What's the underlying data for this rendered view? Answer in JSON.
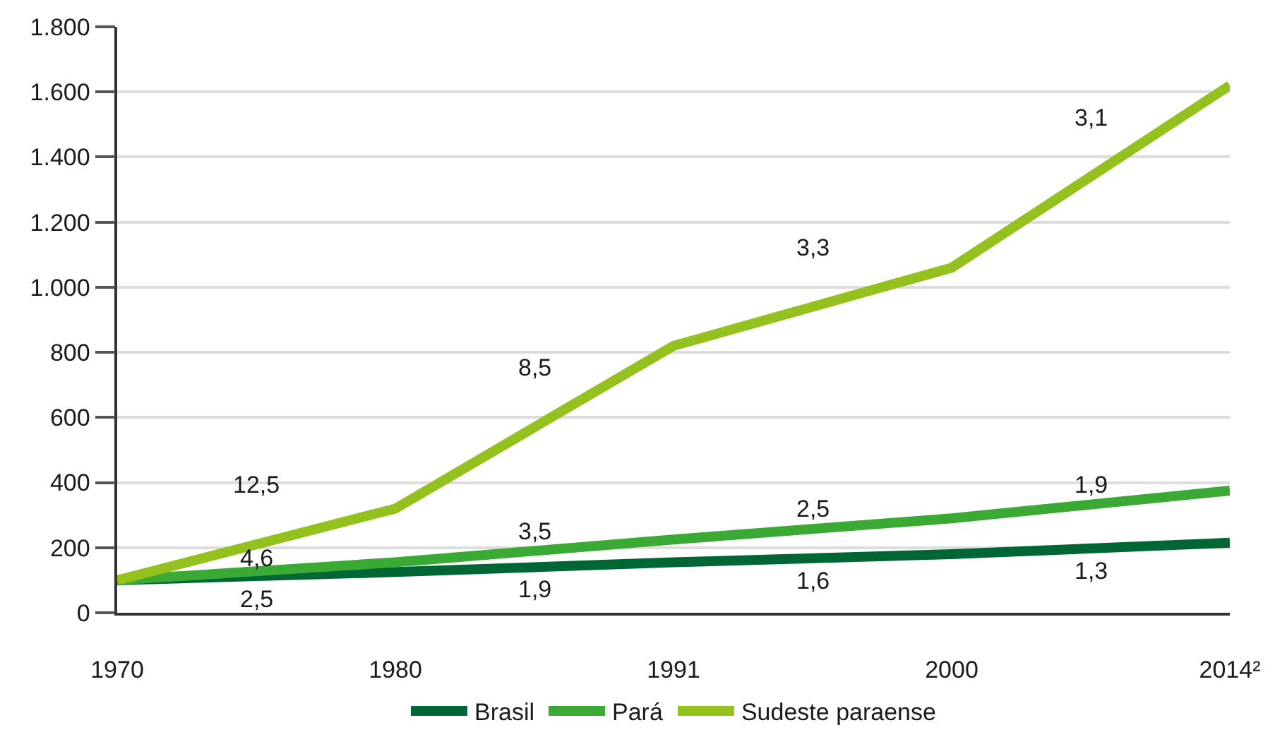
{
  "chart_data": {
    "type": "line",
    "categories": [
      "1970",
      "1980",
      "1991",
      "2000",
      "2014²"
    ],
    "series": [
      {
        "name": "Brasil",
        "color": "#006633",
        "values": [
          100,
          125,
          155,
          180,
          215
        ]
      },
      {
        "name": "Pará",
        "color": "#3aaa35",
        "values": [
          100,
          155,
          225,
          290,
          375
        ]
      },
      {
        "name": "Sudeste paraense",
        "color": "#95c11f",
        "values": [
          100,
          320,
          820,
          1060,
          1620
        ]
      }
    ],
    "ylim": [
      0,
      1800
    ],
    "yticks": [
      0,
      200,
      400,
      600,
      800,
      {
        "value": 1000,
        "label": "1.000"
      },
      {
        "value": 1200,
        "label": "1.200"
      },
      {
        "value": 1400,
        "label": "1.400"
      },
      {
        "value": 1600,
        "label": "1.600"
      },
      {
        "value": 1800,
        "label": "1.800"
      }
    ],
    "grid": "y",
    "legend": "bottom",
    "marker": "none",
    "line_style": "solid",
    "annotations": [
      "12,5",
      "4,6",
      "2,5",
      "8,5",
      "3,5",
      "1,9",
      "3,3",
      "2,5",
      "1,6",
      "3,1",
      "1,9",
      "1,3"
    ]
  }
}
